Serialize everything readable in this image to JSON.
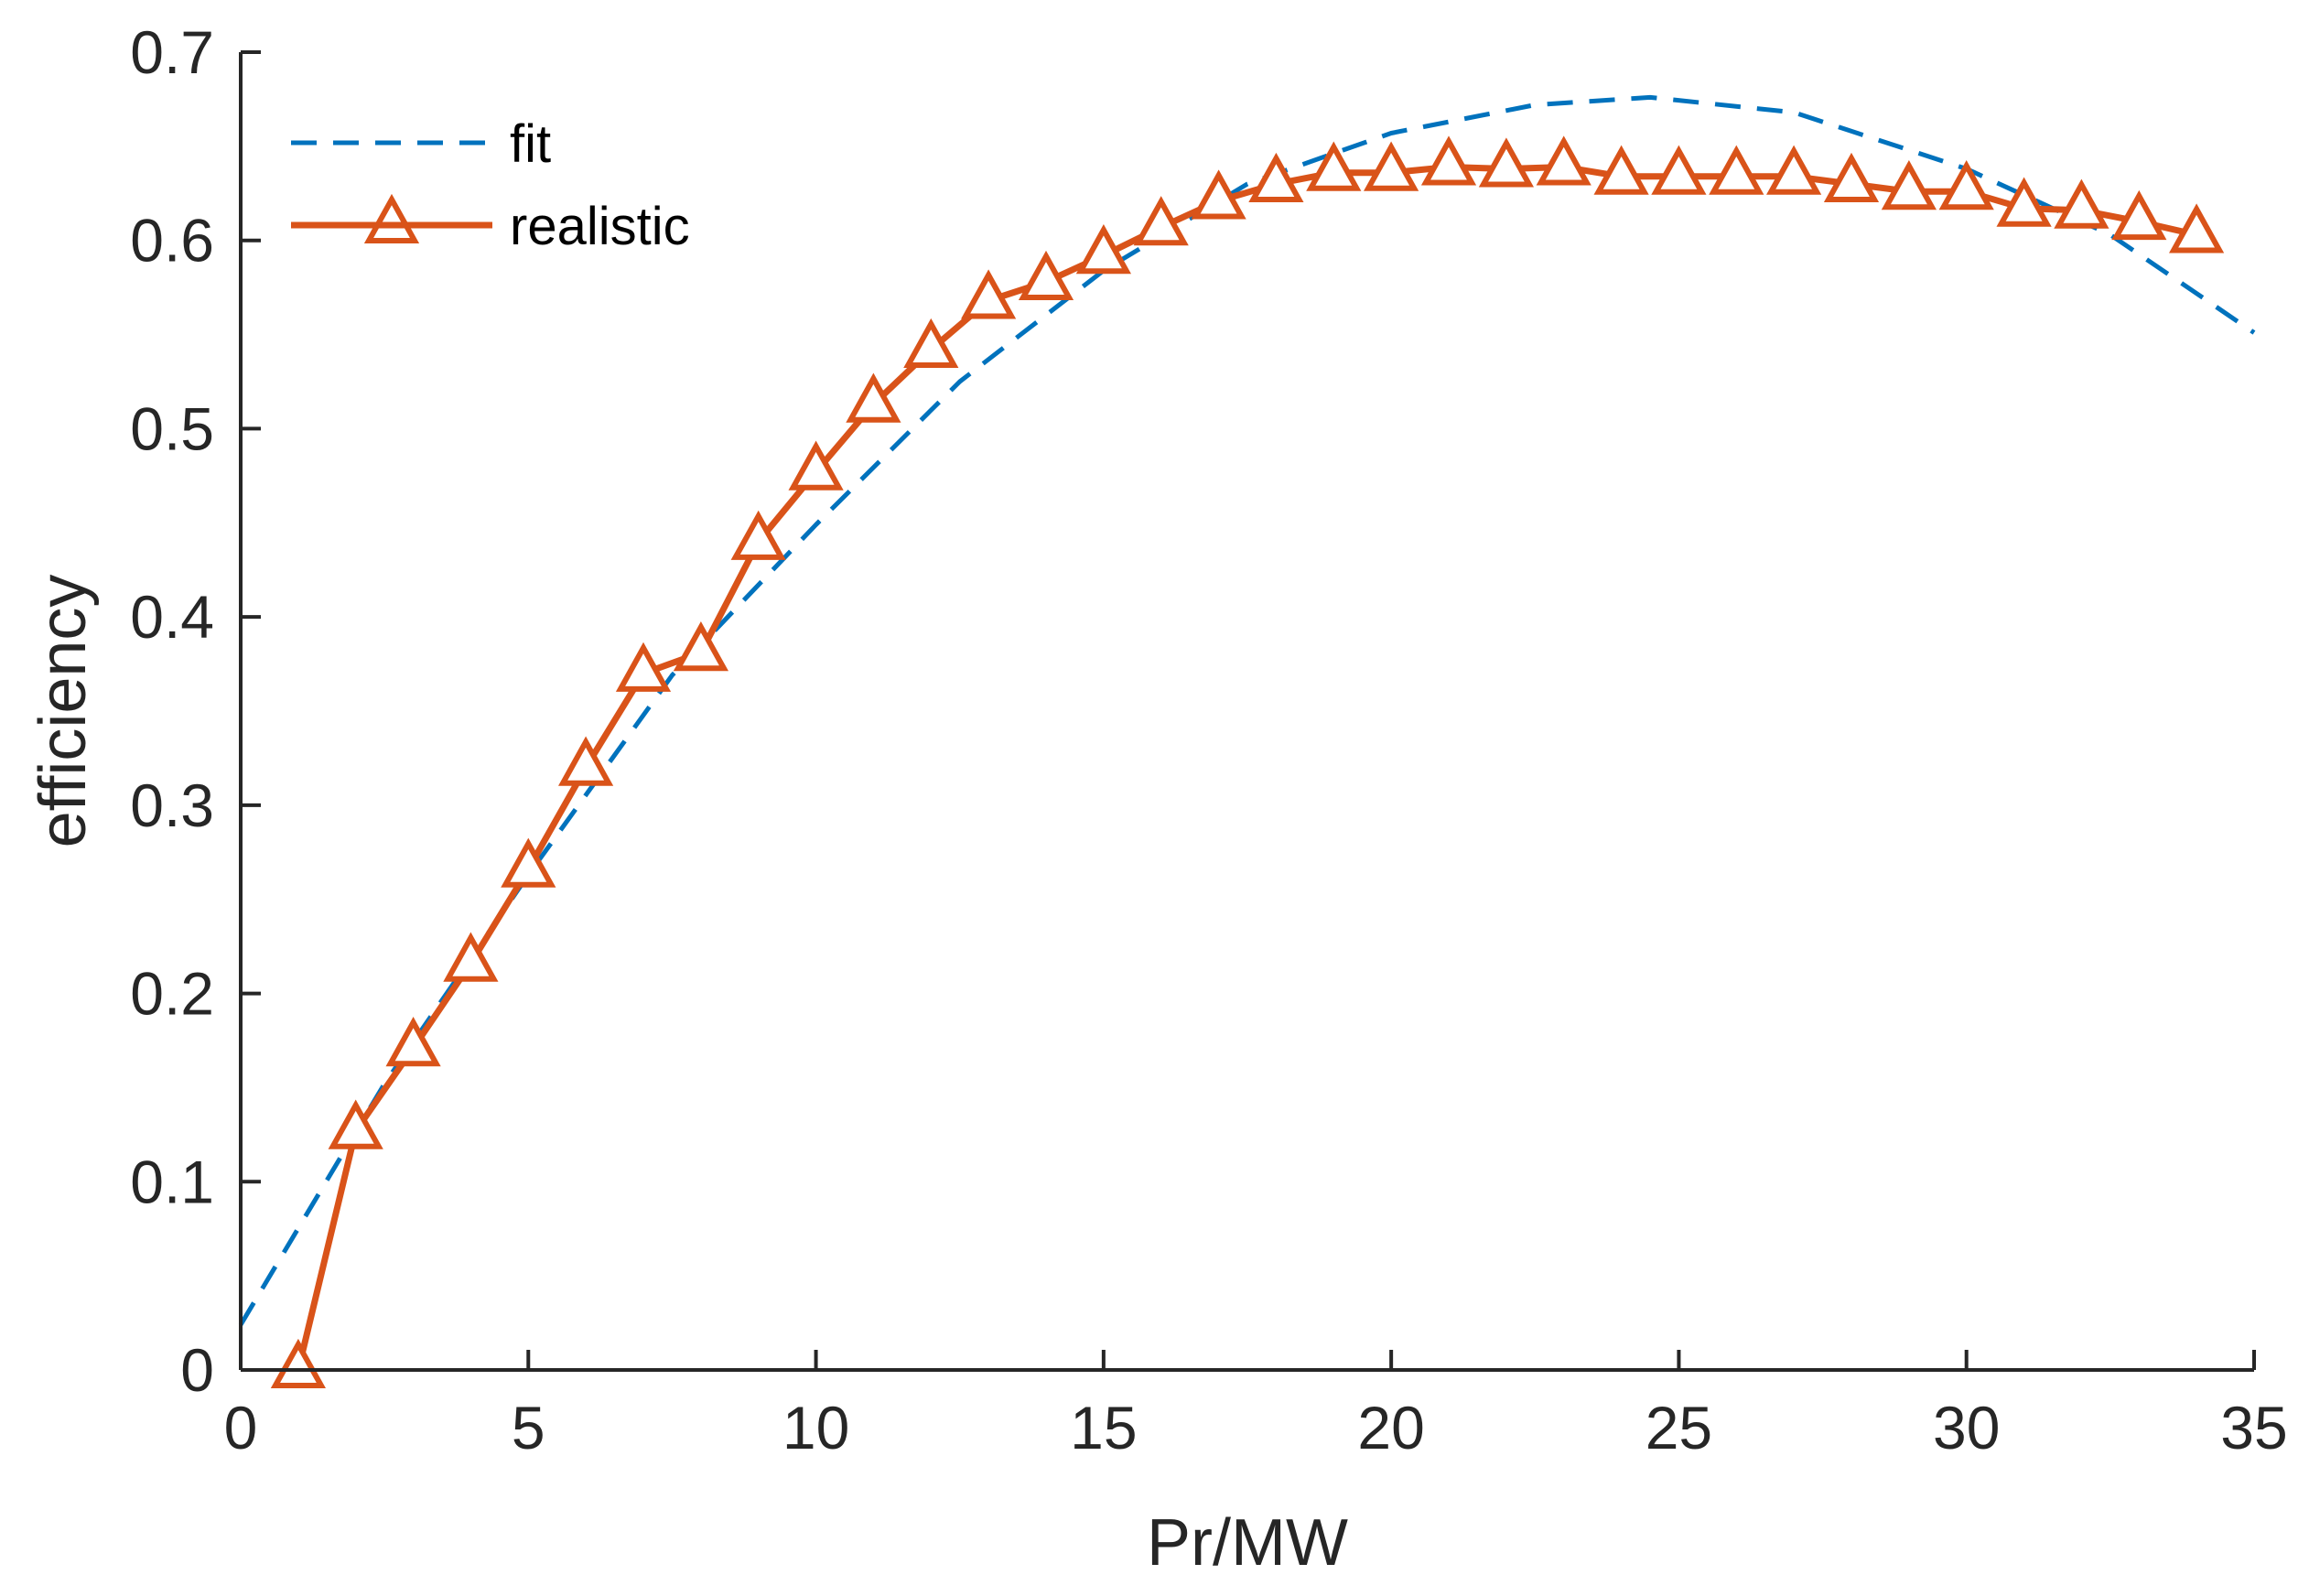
{
  "chart_data": {
    "type": "line",
    "title": "",
    "xlabel": "Pr/MW",
    "ylabel": "efficiency",
    "xlim": [
      0,
      35
    ],
    "ylim": [
      0,
      0.7
    ],
    "xticks": [
      0,
      5,
      10,
      15,
      20,
      25,
      30,
      35
    ],
    "xtick_labels": [
      "0",
      "5",
      "10",
      "15",
      "20",
      "25",
      "30",
      "35"
    ],
    "yticks": [
      0,
      0.1,
      0.2,
      0.3,
      0.4,
      0.5,
      0.6,
      0.7
    ],
    "ytick_labels": [
      "0",
      "0.1",
      "0.2",
      "0.3",
      "0.4",
      "0.5",
      "0.6",
      "0.7"
    ],
    "grid": false,
    "legend": {
      "location": "top-left",
      "entries": [
        "fit",
        "realistic"
      ]
    },
    "series": [
      {
        "name": "fit",
        "style": "dashed",
        "color": "#0072BD",
        "x": [
          0,
          2.5,
          5,
          7.5,
          10,
          12.5,
          15,
          17.5,
          20,
          22.5,
          24.5,
          27,
          30,
          32.5,
          35
        ],
        "values": [
          0.024,
          0.152,
          0.263,
          0.369,
          0.449,
          0.525,
          0.584,
          0.63,
          0.657,
          0.672,
          0.676,
          0.668,
          0.638,
          0.603,
          0.551
        ]
      },
      {
        "name": "realistic",
        "style": "solid",
        "marker": "triangle",
        "color": "#D95319",
        "x": [
          1,
          2,
          3,
          4,
          5,
          6,
          7,
          8,
          9,
          10,
          11,
          12,
          13,
          14,
          15,
          16,
          17,
          18,
          19,
          20,
          21,
          22,
          23,
          24,
          25,
          26,
          27,
          28,
          29,
          30,
          31,
          32,
          33,
          34
        ],
        "values": [
          0.0,
          0.127,
          0.171,
          0.216,
          0.266,
          0.32,
          0.37,
          0.381,
          0.44,
          0.477,
          0.513,
          0.542,
          0.568,
          0.578,
          0.592,
          0.607,
          0.621,
          0.63,
          0.636,
          0.636,
          0.639,
          0.638,
          0.639,
          0.634,
          0.634,
          0.634,
          0.634,
          0.63,
          0.626,
          0.626,
          0.617,
          0.616,
          0.61,
          0.603
        ]
      }
    ]
  }
}
